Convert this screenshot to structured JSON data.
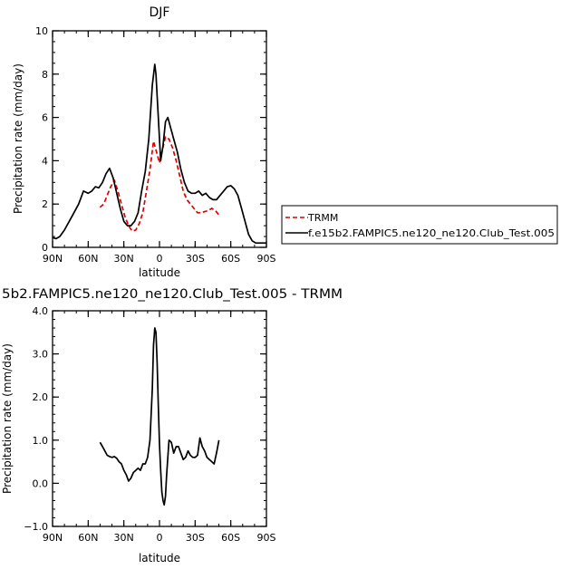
{
  "chart_data": [
    {
      "type": "line",
      "title": "DJF",
      "xlabel": "latitude",
      "ylabel": "Precipitation rate (mm/day)",
      "xlim": [
        90,
        -90
      ],
      "ylim": [
        0,
        10
      ],
      "x_ticks": [
        90,
        60,
        30,
        0,
        -30,
        -60,
        -90
      ],
      "x_tick_labels": [
        "90N",
        "60N",
        "30N",
        "0",
        "30S",
        "60S",
        "90S"
      ],
      "y_ticks": [
        0,
        2,
        4,
        6,
        8,
        10
      ],
      "y_tick_labels": [
        "0",
        "2",
        "4",
        "6",
        "8",
        "10"
      ],
      "legend": {
        "placement": "right",
        "entries": [
          "TRMM",
          "f.e15b2.FAMPIC5.ne120_ne120.Club_Test.005"
        ]
      },
      "series": [
        {
          "name": "TRMM",
          "color": "#e00000",
          "dash": "dashed",
          "x": [
            50,
            47,
            44,
            41,
            38,
            35,
            32,
            29,
            26,
            23,
            20,
            17,
            14,
            11,
            8,
            5,
            2,
            0,
            -2,
            -5,
            -8,
            -11,
            -14,
            -17,
            -20,
            -23,
            -26,
            -29,
            -32,
            -35,
            -38,
            -41,
            -44,
            -47,
            -50
          ],
          "y": [
            1.85,
            2.0,
            2.4,
            2.8,
            3.1,
            2.6,
            2.0,
            1.4,
            1.0,
            0.75,
            0.8,
            1.1,
            1.6,
            2.6,
            3.6,
            4.9,
            4.3,
            3.9,
            4.4,
            5.1,
            5.0,
            4.6,
            4.0,
            3.3,
            2.6,
            2.2,
            2.0,
            1.8,
            1.6,
            1.6,
            1.65,
            1.7,
            1.8,
            1.7,
            1.5
          ]
        },
        {
          "name": "f.e15b2.FAMPIC5.ne120_ne120.Club_Test.005",
          "color": "#000000",
          "dash": "solid",
          "x": [
            90,
            87,
            84,
            80,
            76,
            72,
            68,
            64,
            60,
            57,
            54,
            51,
            48,
            45,
            42,
            39,
            36,
            33,
            30,
            27,
            24,
            21,
            18,
            15,
            12,
            9,
            6,
            4,
            3,
            1,
            -1,
            -3,
            -5,
            -7,
            -9,
            -12,
            -15,
            -18,
            -21,
            -24,
            -27,
            -30,
            -33,
            -36,
            -39,
            -42,
            -45,
            -48,
            -51,
            -54,
            -57,
            -60,
            -63,
            -66,
            -69,
            -72,
            -75,
            -78,
            -81,
            -84,
            -87,
            -90
          ],
          "y": [
            0.45,
            0.4,
            0.5,
            0.8,
            1.2,
            1.6,
            2.0,
            2.6,
            2.5,
            2.6,
            2.8,
            2.75,
            3.0,
            3.4,
            3.65,
            3.2,
            2.5,
            1.8,
            1.2,
            1.0,
            1.0,
            1.2,
            1.6,
            2.6,
            3.5,
            5.0,
            7.5,
            8.45,
            8.0,
            6.0,
            4.0,
            4.7,
            5.8,
            6.0,
            5.6,
            5.0,
            4.4,
            3.6,
            3.0,
            2.6,
            2.5,
            2.5,
            2.6,
            2.4,
            2.5,
            2.3,
            2.2,
            2.2,
            2.4,
            2.6,
            2.8,
            2.85,
            2.7,
            2.4,
            1.8,
            1.2,
            0.6,
            0.3,
            0.2,
            0.2,
            0.2,
            0.2
          ]
        }
      ]
    },
    {
      "type": "line",
      "title": "5b2.FAMPIC5.ne120_ne120.Club_Test.005 - TRMM",
      "xlabel": "latitude",
      "ylabel": "Precipitation rate (mm/day)",
      "xlim": [
        90,
        -90
      ],
      "ylim": [
        -1,
        4
      ],
      "x_ticks": [
        90,
        60,
        30,
        0,
        -30,
        -60,
        -90
      ],
      "x_tick_labels": [
        "90N",
        "60N",
        "30N",
        "0",
        "30S",
        "60S",
        "90S"
      ],
      "y_ticks": [
        -1,
        0,
        1,
        2,
        3,
        4
      ],
      "y_tick_labels": [
        "−1.0",
        "0.0",
        "1.0",
        "2.0",
        "3.0",
        "4.0"
      ],
      "series": [
        {
          "color": "#000000",
          "dash": "solid",
          "x": [
            50,
            48,
            46,
            44,
            42,
            40,
            38,
            36,
            34,
            32,
            30,
            28,
            26,
            24,
            22,
            20,
            18,
            16,
            14,
            12,
            10,
            8,
            6,
            5,
            4,
            3,
            2,
            1,
            0,
            -1,
            -2,
            -3,
            -4,
            -5,
            -6,
            -7,
            -8,
            -10,
            -12,
            -14,
            -16,
            -18,
            -20,
            -22,
            -24,
            -26,
            -28,
            -30,
            -32,
            -34,
            -36,
            -38,
            -40,
            -42,
            -44,
            -46,
            -48,
            -50
          ],
          "y": [
            0.95,
            0.85,
            0.75,
            0.65,
            0.62,
            0.6,
            0.62,
            0.58,
            0.5,
            0.45,
            0.3,
            0.2,
            0.05,
            0.12,
            0.25,
            0.3,
            0.35,
            0.3,
            0.45,
            0.45,
            0.6,
            1.0,
            2.2,
            3.2,
            3.6,
            3.5,
            2.8,
            1.8,
            0.9,
            0.3,
            -0.2,
            -0.4,
            -0.5,
            -0.3,
            0.2,
            0.6,
            1.0,
            0.95,
            0.7,
            0.85,
            0.85,
            0.7,
            0.55,
            0.6,
            0.75,
            0.65,
            0.6,
            0.6,
            0.65,
            1.05,
            0.85,
            0.75,
            0.6,
            0.55,
            0.5,
            0.45,
            0.7,
            1.0
          ]
        }
      ]
    }
  ]
}
